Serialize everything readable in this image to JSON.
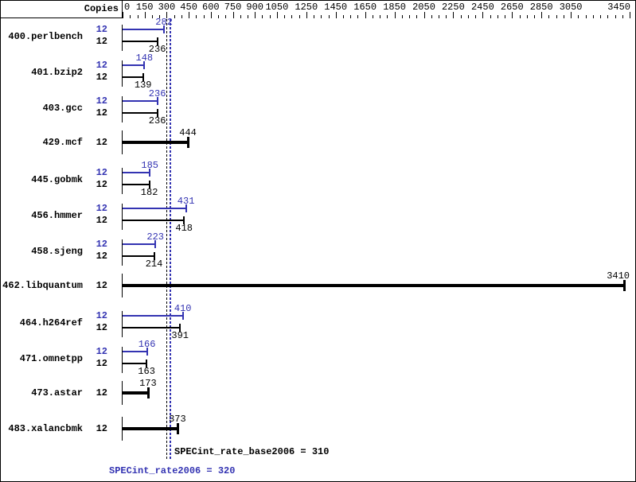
{
  "header": {
    "copies_label": "Copies"
  },
  "colors": {
    "peak": "#3333b2",
    "base": "#000000",
    "background": "#ffffff",
    "mean_base_line": "#000000",
    "mean_peak_line": "#3333b2"
  },
  "axis": {
    "min": 0,
    "max": 3450,
    "minor_step": 50,
    "labeled_ticks": [
      0,
      150,
      300,
      450,
      600,
      750,
      900,
      1050,
      1250,
      1450,
      1650,
      1850,
      2050,
      2250,
      2450,
      2650,
      2850,
      3050,
      3450
    ]
  },
  "benchmarks": [
    {
      "name": "400.perlbench",
      "rows": [
        {
          "kind": "peak",
          "copies": "12",
          "value": 282
        },
        {
          "kind": "base",
          "copies": "12",
          "value": 236
        }
      ]
    },
    {
      "name": "401.bzip2",
      "rows": [
        {
          "kind": "peak",
          "copies": "12",
          "value": 148
        },
        {
          "kind": "base",
          "copies": "12",
          "value": 139
        }
      ]
    },
    {
      "name": "403.gcc",
      "rows": [
        {
          "kind": "peak",
          "copies": "12",
          "value": 236
        },
        {
          "kind": "base",
          "copies": "12",
          "value": 236
        }
      ]
    },
    {
      "name": "429.mcf",
      "rows": [
        {
          "kind": "both",
          "copies": "12",
          "value": 444
        }
      ]
    },
    {
      "name": "445.gobmk",
      "rows": [
        {
          "kind": "peak",
          "copies": "12",
          "value": 185
        },
        {
          "kind": "base",
          "copies": "12",
          "value": 182
        }
      ]
    },
    {
      "name": "456.hmmer",
      "rows": [
        {
          "kind": "peak",
          "copies": "12",
          "value": 431
        },
        {
          "kind": "base",
          "copies": "12",
          "value": 418
        }
      ]
    },
    {
      "name": "458.sjeng",
      "rows": [
        {
          "kind": "peak",
          "copies": "12",
          "value": 223
        },
        {
          "kind": "base",
          "copies": "12",
          "value": 214
        }
      ]
    },
    {
      "name": "462.libquantum",
      "rows": [
        {
          "kind": "both",
          "copies": "12",
          "value": 3410
        }
      ]
    },
    {
      "name": "464.h264ref",
      "rows": [
        {
          "kind": "peak",
          "copies": "12",
          "value": 410
        },
        {
          "kind": "base",
          "copies": "12",
          "value": 391
        }
      ]
    },
    {
      "name": "471.omnetpp",
      "rows": [
        {
          "kind": "peak",
          "copies": "12",
          "value": 166
        },
        {
          "kind": "base",
          "copies": "12",
          "value": 163
        }
      ]
    },
    {
      "name": "473.astar",
      "rows": [
        {
          "kind": "both",
          "copies": "12",
          "value": 173
        }
      ]
    },
    {
      "name": "483.xalancbmk",
      "rows": [
        {
          "kind": "both",
          "copies": "12",
          "value": 373
        }
      ]
    }
  ],
  "summary": {
    "base_label": "SPECint_rate_base2006 = 310",
    "base_value": 310,
    "peak_label": "SPECint_rate2006 = 320",
    "peak_value": 320
  },
  "chart_data": {
    "type": "bar",
    "orientation": "horizontal",
    "title": "",
    "xlabel": "",
    "ylabel": "Copies",
    "xlim": [
      0,
      3450
    ],
    "grid": false,
    "legend_position": "none",
    "categories": [
      "400.perlbench",
      "401.bzip2",
      "403.gcc",
      "429.mcf",
      "445.gobmk",
      "456.hmmer",
      "458.sjeng",
      "462.libquantum",
      "464.h264ref",
      "471.omnetpp",
      "473.astar",
      "483.xalancbmk"
    ],
    "copies": [
      12,
      12,
      12,
      12,
      12,
      12,
      12,
      12,
      12,
      12,
      12,
      12
    ],
    "series": [
      {
        "name": "SPECint_rate2006 (peak)",
        "color": "#3333b2",
        "values": [
          282,
          148,
          236,
          444,
          185,
          431,
          223,
          3410,
          410,
          166,
          173,
          373
        ]
      },
      {
        "name": "SPECint_rate_base2006 (base)",
        "color": "#000000",
        "values": [
          236,
          139,
          236,
          444,
          182,
          418,
          214,
          3410,
          391,
          163,
          173,
          373
        ]
      }
    ],
    "mean_lines": [
      {
        "label": "SPECint_rate_base2006",
        "value": 310
      },
      {
        "label": "SPECint_rate2006",
        "value": 320
      }
    ],
    "annotations": [
      "SPECint_rate_base2006 = 310",
      "SPECint_rate2006 = 320"
    ]
  }
}
